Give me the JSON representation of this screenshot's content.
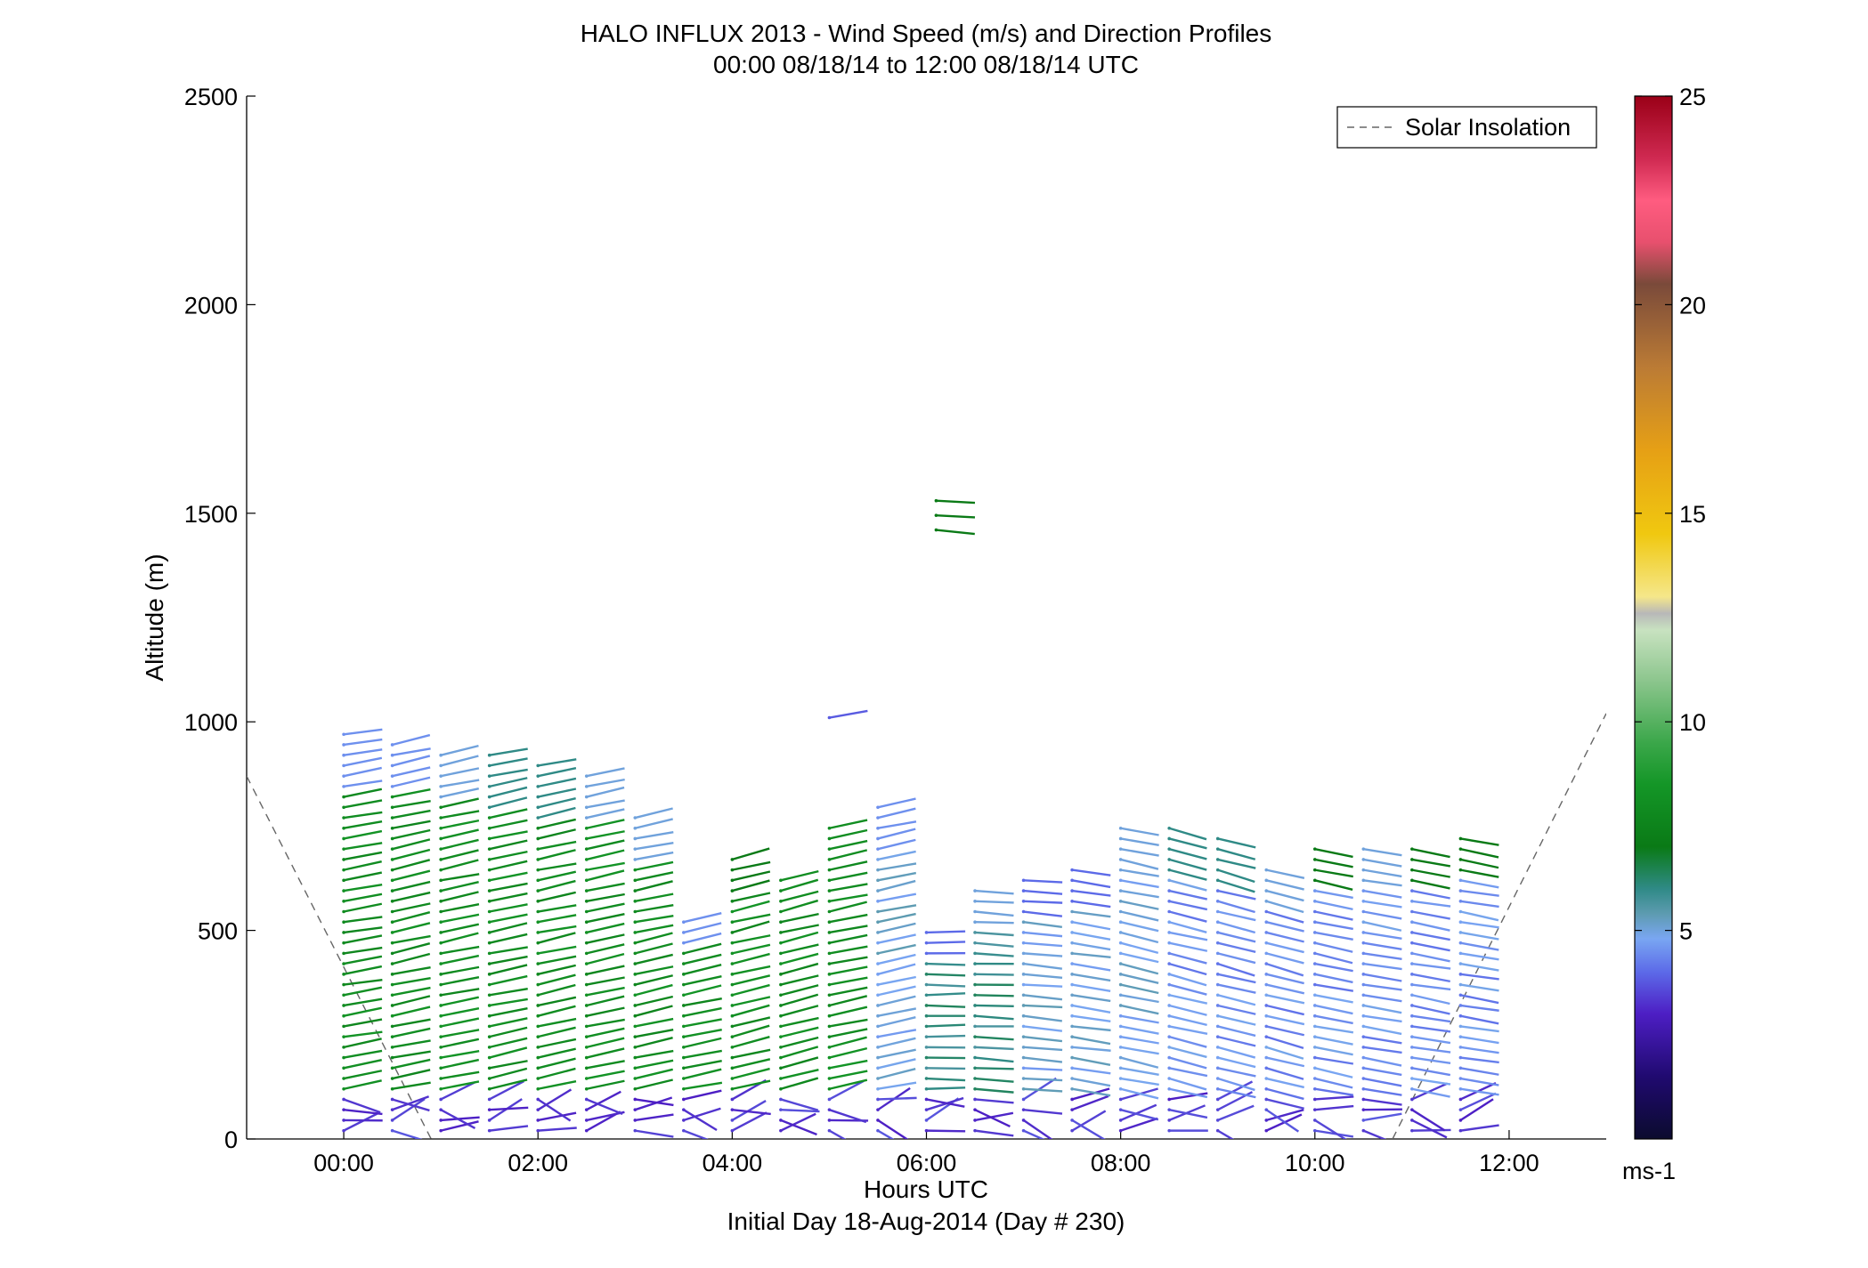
{
  "chart_data": {
    "type": "quiver",
    "title": "HALO INFLUX 2013 - Wind Speed (m/s) and Direction Profiles",
    "subtitle": "00:00 08/18/14 to 12:00 08/18/14  UTC",
    "xlabel": "Hours UTC",
    "xlabel2": "Initial Day 18-Aug-2014 (Day # 230)",
    "ylabel": "Altitude (m)",
    "xlim": [
      -1.0,
      13.0
    ],
    "ylim": [
      0,
      2500
    ],
    "x_ticks": [
      0,
      2,
      4,
      6,
      8,
      10,
      12
    ],
    "x_tick_labels": [
      "00:00",
      "02:00",
      "04:00",
      "06:00",
      "08:00",
      "10:00",
      "12:00"
    ],
    "y_ticks": [
      0,
      500,
      1000,
      1500,
      2000,
      2500
    ],
    "y_tick_labels": [
      "0",
      "500",
      "1000",
      "1500",
      "2000",
      "2500"
    ],
    "legend": {
      "label": "Solar Insolation",
      "placement": "top-right"
    },
    "colorbar": {
      "label": "ms-1",
      "range": [
        0,
        25
      ],
      "ticks": [
        5,
        10,
        15,
        20,
        25
      ],
      "tick_labels": [
        "5",
        "10",
        "15",
        "20",
        "25"
      ],
      "stops": [
        [
          0,
          "#0b0b2e"
        ],
        [
          1.5,
          "#200a70"
        ],
        [
          3,
          "#4d1ec4"
        ],
        [
          4,
          "#5c6ae8"
        ],
        [
          4.8,
          "#79a6f2"
        ],
        [
          5.4,
          "#5d9bb0"
        ],
        [
          6,
          "#2f8a86"
        ],
        [
          7,
          "#0a7a16"
        ],
        [
          8.5,
          "#149627"
        ],
        [
          9.5,
          "#3ba74a"
        ],
        [
          11,
          "#8dc68e"
        ],
        [
          12.2,
          "#c8e2c0"
        ],
        [
          12.6,
          "#b8b8b8"
        ],
        [
          13,
          "#f5e78a"
        ],
        [
          14.5,
          "#f0c810"
        ],
        [
          16.5,
          "#e6a015"
        ],
        [
          18.5,
          "#bb7b35"
        ],
        [
          20.5,
          "#7a4a3a"
        ],
        [
          21.5,
          "#e8506e"
        ],
        [
          22.5,
          "#ff5c80"
        ],
        [
          23.5,
          "#d02a52"
        ],
        [
          25,
          "#9a0017"
        ]
      ]
    },
    "solar_insolation_line": {
      "points": [
        [
          -1.0,
          870
        ],
        [
          0.9,
          0
        ]
      ],
      "points2": [
        [
          10.8,
          0
        ],
        [
          13.0,
          1020
        ]
      ]
    },
    "profile_times_hours": [
      0.0,
      0.5,
      1.0,
      1.5,
      2.0,
      2.5,
      3.0,
      3.5,
      4.0,
      4.5,
      5.0,
      5.5,
      6.0,
      6.5,
      7.0,
      7.5,
      8.0,
      8.5,
      9.0,
      9.5,
      10.0,
      10.5,
      11.0,
      11.5
    ],
    "wind_barb_note": "Each profile: altitude range [min_m, max_m], dominant speed (m/s), heading angle (deg)",
    "profiles": [
      {
        "t": 0.0,
        "alt_min": 20,
        "alt_max": 970,
        "speed_low": 3,
        "speed_mid": 8,
        "speed_top": 4.5,
        "angle": -10
      },
      {
        "t": 0.5,
        "alt_min": 20,
        "alt_max": 965,
        "speed_low": 3,
        "speed_mid": 8,
        "speed_top": 4.5,
        "angle": -12
      },
      {
        "t": 1.0,
        "alt_min": 20,
        "alt_max": 935,
        "speed_low": 3,
        "speed_mid": 8,
        "speed_top": 5,
        "angle": -12
      },
      {
        "t": 1.5,
        "alt_min": 20,
        "alt_max": 930,
        "speed_low": 3,
        "speed_mid": 8,
        "speed_top": 6,
        "angle": -12
      },
      {
        "t": 2.0,
        "alt_min": 20,
        "alt_max": 900,
        "speed_low": 3,
        "speed_mid": 8,
        "speed_top": 6,
        "angle": -12
      },
      {
        "t": 2.5,
        "alt_min": 20,
        "alt_max": 890,
        "speed_low": 3,
        "speed_mid": 8,
        "speed_top": 5,
        "angle": -12
      },
      {
        "t": 3.0,
        "alt_min": 20,
        "alt_max": 780,
        "speed_low": 3,
        "speed_mid": 8,
        "speed_top": 5,
        "angle": -12
      },
      {
        "t": 3.5,
        "alt_min": 20,
        "alt_max": 530,
        "speed_low": 3,
        "speed_mid": 8,
        "speed_top": 4.5,
        "angle": -12
      },
      {
        "t": 4.0,
        "alt_min": 20,
        "alt_max": 690,
        "speed_low": 3,
        "speed_mid": 8,
        "speed_top": 7,
        "angle": -14
      },
      {
        "t": 4.5,
        "alt_min": 20,
        "alt_max": 620,
        "speed_low": 3,
        "speed_mid": 8,
        "speed_top": 8,
        "angle": -14
      },
      {
        "t": 5.0,
        "alt_min": 20,
        "alt_max": 760,
        "speed_low": 3,
        "speed_mid": 8,
        "speed_top": 8,
        "angle": -12
      },
      {
        "t": 5.5,
        "alt_min": 20,
        "alt_max": 800,
        "speed_low": 3,
        "speed_mid": 5,
        "speed_top": 4.5,
        "angle": -12
      },
      {
        "t": 6.0,
        "alt_min": 20,
        "alt_max": 500,
        "speed_low": 3,
        "speed_mid": 6,
        "speed_top": 4,
        "angle": 0
      },
      {
        "t": 6.5,
        "alt_min": 20,
        "alt_max": 600,
        "speed_low": 3,
        "speed_mid": 6,
        "speed_top": 5,
        "angle": 3
      },
      {
        "t": 7.0,
        "alt_min": 20,
        "alt_max": 620,
        "speed_low": 3,
        "speed_mid": 5,
        "speed_top": 4,
        "angle": 5
      },
      {
        "t": 7.5,
        "alt_min": 20,
        "alt_max": 660,
        "speed_low": 3,
        "speed_mid": 5,
        "speed_top": 4,
        "angle": 8
      },
      {
        "t": 8.0,
        "alt_min": 20,
        "alt_max": 750,
        "speed_low": 3,
        "speed_mid": 5,
        "speed_top": 5,
        "angle": 12
      },
      {
        "t": 8.5,
        "alt_min": 20,
        "alt_max": 750,
        "speed_low": 3,
        "speed_mid": 4.5,
        "speed_top": 6,
        "angle": 14
      },
      {
        "t": 9.0,
        "alt_min": 20,
        "alt_max": 720,
        "speed_low": 3,
        "speed_mid": 4.5,
        "speed_top": 6,
        "angle": 15
      },
      {
        "t": 9.5,
        "alt_min": 20,
        "alt_max": 650,
        "speed_low": 3,
        "speed_mid": 4.5,
        "speed_top": 5,
        "angle": 15
      },
      {
        "t": 10.0,
        "alt_min": 20,
        "alt_max": 710,
        "speed_low": 3,
        "speed_mid": 4.5,
        "speed_top": 7,
        "angle": 12
      },
      {
        "t": 10.5,
        "alt_min": 20,
        "alt_max": 700,
        "speed_low": 3,
        "speed_mid": 4.5,
        "speed_top": 5,
        "angle": 10
      },
      {
        "t": 11.0,
        "alt_min": 20,
        "alt_max": 700,
        "speed_low": 3,
        "speed_mid": 4.5,
        "speed_top": 7,
        "angle": 10
      },
      {
        "t": 11.5,
        "alt_min": 20,
        "alt_max": 740,
        "speed_low": 3,
        "speed_mid": 4.5,
        "speed_top": 7,
        "angle": 10
      }
    ],
    "isolated_barbs": [
      {
        "t": 6.1,
        "alt": 1530,
        "speed": 7,
        "angle": 3
      },
      {
        "t": 6.1,
        "alt": 1495,
        "speed": 7,
        "angle": 3
      },
      {
        "t": 6.1,
        "alt": 1460,
        "speed": 7,
        "angle": 6
      },
      {
        "t": 5.0,
        "alt": 1010,
        "speed": 3.8,
        "angle": -10
      }
    ]
  }
}
